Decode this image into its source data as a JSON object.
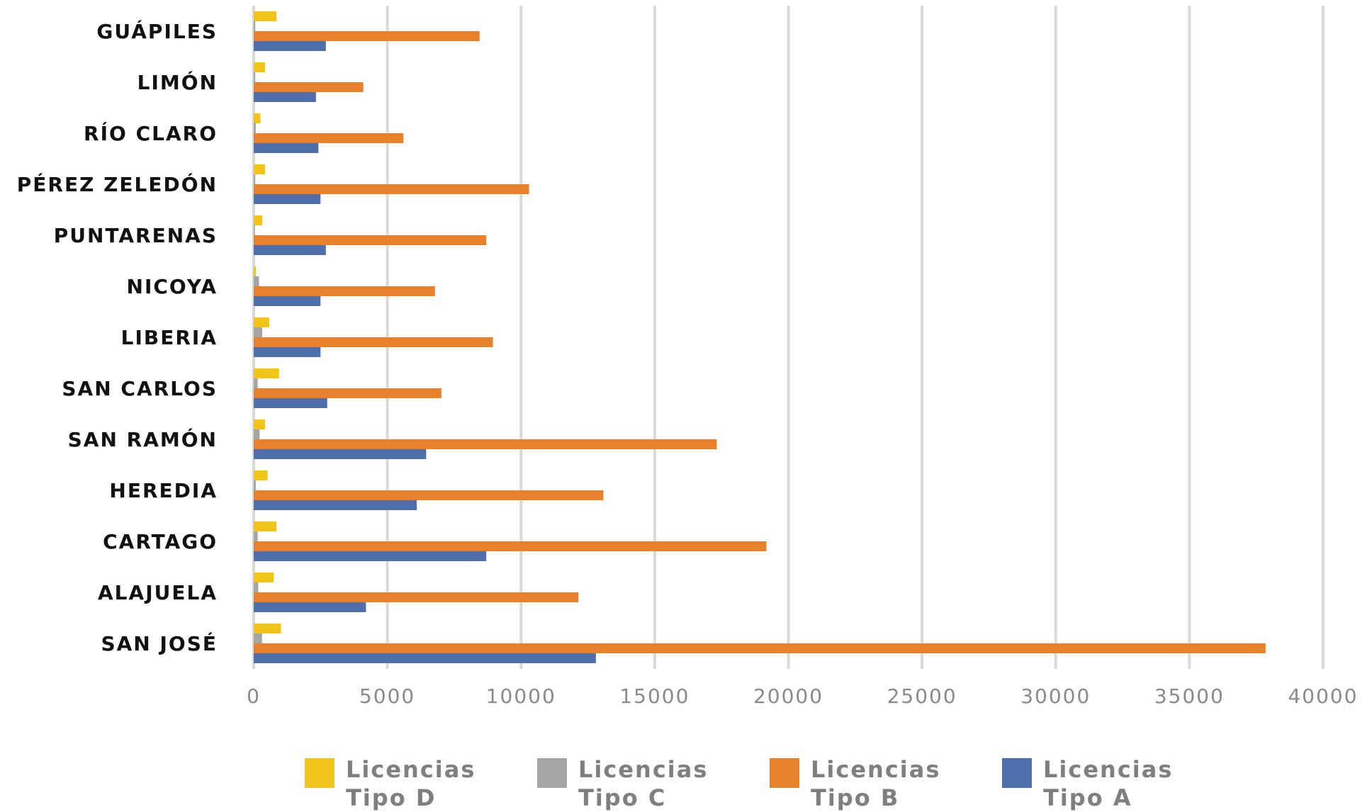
{
  "chart_data": {
    "type": "bar",
    "orientation": "horizontal",
    "title": "",
    "xlabel": "",
    "ylabel": "",
    "xlim": [
      0,
      40000
    ],
    "xticks": [
      "0",
      "5000",
      "10000",
      "15000",
      "20000",
      "25000",
      "30000",
      "35000",
      "40000"
    ],
    "grid": "vertical",
    "legend_position": "bottom",
    "categories": [
      "GUÁPILES",
      "LIMÓN",
      "RÍO CLARO",
      "PÉREZ ZELEDÓN",
      "PUNTARENAS",
      "NICOYA",
      "LIBERIA",
      "SAN CARLOS",
      "SAN RAMÓN",
      "HEREDIA",
      "CARTAGO",
      "ALAJUELA",
      "SAN JOSÉ"
    ],
    "series": [
      {
        "name": "Licencias Tipo D",
        "color": "#f0c419",
        "values": [
          850,
          420,
          250,
          420,
          320,
          80,
          580,
          950,
          420,
          520,
          850,
          750,
          1020
        ]
      },
      {
        "name": "Licencias Tipo C",
        "color": "#a5a5a5",
        "values": [
          60,
          60,
          80,
          60,
          40,
          200,
          320,
          150,
          220,
          80,
          150,
          170,
          310
        ]
      },
      {
        "name": "Licencias Tipo B",
        "color": "#e8812c",
        "values": [
          8450,
          4100,
          5600,
          10300,
          8700,
          6780,
          8950,
          7020,
          17320,
          13080,
          19180,
          12150,
          37850
        ]
      },
      {
        "name": "Licencias Tipo A",
        "color": "#4f6fad",
        "values": [
          2700,
          2330,
          2420,
          2500,
          2700,
          2500,
          2500,
          2750,
          6450,
          6100,
          8700,
          4200,
          12800
        ]
      }
    ],
    "legend": [
      {
        "line1": "Licencias",
        "line2": "Tipo D",
        "color": "#f0c419"
      },
      {
        "line1": "Licencias",
        "line2": "Tipo C",
        "color": "#a5a5a5"
      },
      {
        "line1": "Licencias",
        "line2": "Tipo B",
        "color": "#e8812c"
      },
      {
        "line1": "Licencias",
        "line2": "Tipo A",
        "color": "#4f6fad"
      }
    ]
  }
}
